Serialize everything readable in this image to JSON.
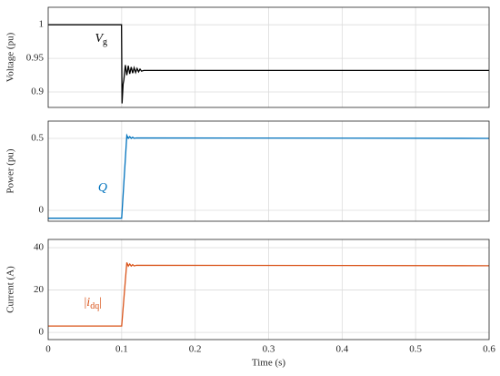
{
  "chart_data": [
    {
      "type": "line",
      "ylabel": "Voltage (pu)",
      "xlim": [
        0,
        0.6
      ],
      "xticks": [
        0,
        0.1,
        0.2,
        0.3,
        0.4,
        0.5,
        0.6
      ],
      "show_xtick_labels": false,
      "ylim": [
        0.877,
        1.026
      ],
      "yticks": [
        0.9,
        0.95,
        1
      ],
      "grid": true,
      "annotation": {
        "base": "V",
        "sub": "g"
      },
      "series": [
        {
          "color": "#000000",
          "x": [
            0,
            0.0998,
            0.1005,
            0.102,
            0.103,
            0.105,
            0.107,
            0.109,
            0.111,
            0.113,
            0.115,
            0.117,
            0.119,
            0.121,
            0.123,
            0.125,
            0.127,
            0.13,
            0.6
          ],
          "values": [
            1,
            1,
            0.883,
            0.912,
            0.918,
            0.94,
            0.925,
            0.939,
            0.927,
            0.937,
            0.928,
            0.936,
            0.929,
            0.935,
            0.93,
            0.934,
            0.931,
            0.932,
            0.932
          ]
        }
      ]
    },
    {
      "type": "line",
      "ylabel": "Power (pu)",
      "xlim": [
        0,
        0.6
      ],
      "xticks": [
        0,
        0.1,
        0.2,
        0.3,
        0.4,
        0.5,
        0.6
      ],
      "show_xtick_labels": false,
      "ylim": [
        -0.076,
        0.62
      ],
      "yticks": [
        0,
        0.5
      ],
      "grid": true,
      "annotation": {
        "base": "Q"
      },
      "series": [
        {
          "color": "#0072bd",
          "x": [
            0,
            0.1,
            0.107,
            0.109,
            0.111,
            0.113,
            0.115,
            0.117,
            0.12,
            0.6
          ],
          "values": [
            -0.055,
            -0.055,
            0.52,
            0.5,
            0.512,
            0.5,
            0.508,
            0.5,
            0.503,
            0.5
          ]
        }
      ]
    },
    {
      "type": "line",
      "ylabel": "Current (A)",
      "xlabel": "Time (s)",
      "xlim": [
        0,
        0.6
      ],
      "xticks": [
        0,
        0.1,
        0.2,
        0.3,
        0.4,
        0.5,
        0.6
      ],
      "show_xtick_labels": true,
      "ylim": [
        -3.4,
        43.9
      ],
      "yticks": [
        0,
        20,
        40
      ],
      "grid": true,
      "annotation": {
        "prefix": "|",
        "base": "i",
        "sub": "dq",
        "suffix": "|"
      },
      "series": [
        {
          "color": "#d95319",
          "x": [
            0,
            0.1,
            0.107,
            0.109,
            0.111,
            0.113,
            0.115,
            0.117,
            0.12,
            0.6
          ],
          "values": [
            3,
            3,
            33,
            31.3,
            32.3,
            31.3,
            32,
            31.4,
            31.7,
            31.5
          ]
        }
      ]
    }
  ]
}
